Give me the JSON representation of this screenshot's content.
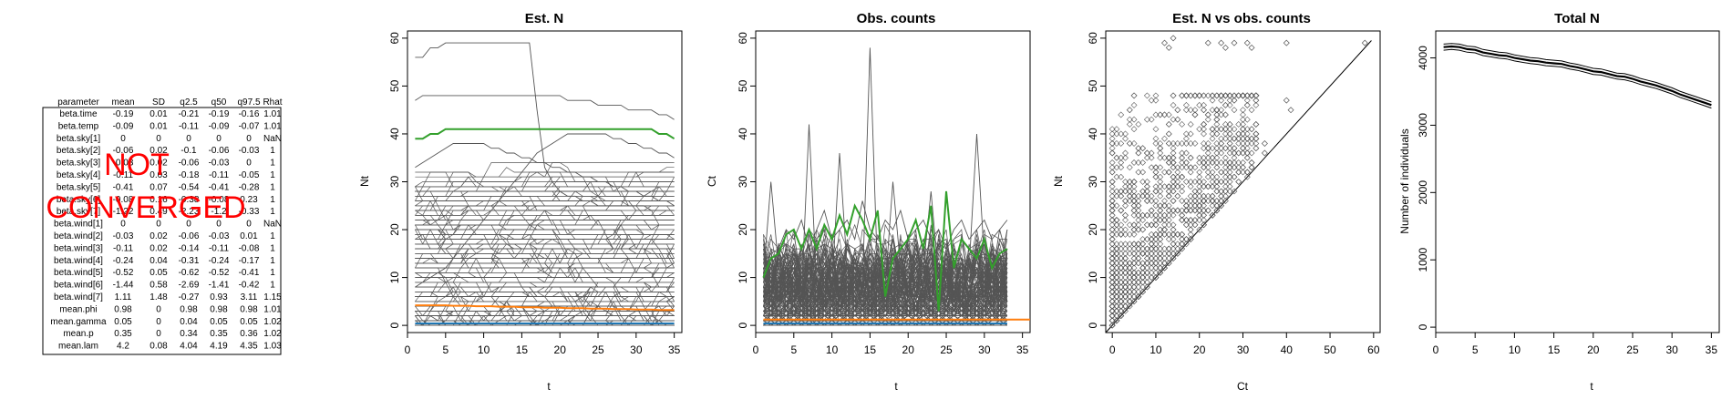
{
  "table": {
    "headers": [
      "parameter",
      "mean",
      "SD",
      "q2.5",
      "q50",
      "q97.5",
      "Rhat"
    ],
    "rows": [
      [
        "beta.time",
        "-0.19",
        "0.01",
        "-0.21",
        "-0.19",
        "-0.16",
        "1.01"
      ],
      [
        "beta.temp",
        "-0.09",
        "0.01",
        "-0.11",
        "-0.09",
        "-0.07",
        "1.01"
      ],
      [
        "beta.sky[1]",
        "0",
        "0",
        "0",
        "0",
        "0",
        "NaN"
      ],
      [
        "beta.sky[2]",
        "-0.06",
        "0.02",
        "-0.1",
        "-0.06",
        "-0.03",
        "1"
      ],
      [
        "beta.sky[3]",
        "-0.03",
        "0.02",
        "-0.06",
        "-0.03",
        "0",
        "1"
      ],
      [
        "beta.sky[4]",
        "-0.11",
        "0.03",
        "-0.18",
        "-0.11",
        "-0.05",
        "1"
      ],
      [
        "beta.sky[5]",
        "-0.41",
        "0.07",
        "-0.54",
        "-0.41",
        "-0.28",
        "1"
      ],
      [
        "beta.sky[6]",
        "-0.08",
        "0.16",
        "-0.38",
        "-0.08",
        "0.23",
        "1"
      ],
      [
        "beta.sky[7]",
        "-1.22",
        "0.49",
        "-2.23",
        "-1.2",
        "-0.33",
        "1"
      ],
      [
        "beta.wind[1]",
        "0",
        "0",
        "0",
        "0",
        "0",
        "NaN"
      ],
      [
        "beta.wind[2]",
        "-0.03",
        "0.02",
        "-0.06",
        "-0.03",
        "0.01",
        "1"
      ],
      [
        "beta.wind[3]",
        "-0.11",
        "0.02",
        "-0.14",
        "-0.11",
        "-0.08",
        "1"
      ],
      [
        "beta.wind[4]",
        "-0.24",
        "0.04",
        "-0.31",
        "-0.24",
        "-0.17",
        "1"
      ],
      [
        "beta.wind[5]",
        "-0.52",
        "0.05",
        "-0.62",
        "-0.52",
        "-0.41",
        "1"
      ],
      [
        "beta.wind[6]",
        "-1.44",
        "0.58",
        "-2.69",
        "-1.41",
        "-0.42",
        "1"
      ],
      [
        "beta.wind[7]",
        "1.11",
        "1.48",
        "-0.27",
        "0.93",
        "3.11",
        "1.15"
      ],
      [
        "mean.phi",
        "0.98",
        "0",
        "0.98",
        "0.98",
        "0.98",
        "1.01"
      ],
      [
        "mean.gamma",
        "0.05",
        "0",
        "0.04",
        "0.05",
        "0.05",
        "1.02"
      ],
      [
        "mean.p",
        "0.35",
        "0",
        "0.34",
        "0.35",
        "0.36",
        "1.02"
      ],
      [
        "mean.lam",
        "4.2",
        "0.08",
        "4.04",
        "4.19",
        "4.35",
        "1.03"
      ]
    ],
    "stamp_line1": "NOT",
    "stamp_line2": "CONVERGED",
    "stamp_color": "#ff0000"
  },
  "chart_data": [
    {
      "type": "line",
      "title": "Est. N",
      "xlabel": "t",
      "ylabel": "Nt",
      "xlim": [
        0,
        36
      ],
      "ylim": [
        -1.5,
        61.5
      ],
      "xticks": [
        0,
        5,
        10,
        15,
        20,
        25,
        30,
        35
      ],
      "yticks": [
        0,
        10,
        20,
        30,
        40,
        50,
        60
      ],
      "line_color": "#555555",
      "sample_sites": [
        {
          "values": [
            56,
            56,
            58,
            58,
            59,
            59,
            59,
            59,
            59,
            59,
            59,
            59,
            59,
            59,
            59,
            59,
            45,
            33,
            30,
            28,
            27,
            27,
            26,
            26,
            25,
            25,
            25,
            25,
            25,
            25,
            25,
            24,
            24,
            24,
            24
          ]
        },
        {
          "values": [
            47,
            48,
            48,
            48,
            48,
            48,
            48,
            48,
            48,
            48,
            48,
            48,
            48,
            48,
            48,
            48,
            48,
            48,
            48,
            48,
            47,
            47,
            47,
            47,
            46,
            46,
            46,
            46,
            45,
            45,
            45,
            45,
            44,
            44,
            43
          ]
        },
        {
          "values": [
            33,
            34,
            35,
            36,
            37,
            38,
            38,
            38,
            38,
            38,
            37,
            37,
            36,
            36,
            35,
            35,
            34,
            34,
            33,
            33,
            32,
            32,
            31,
            31,
            30,
            30,
            29,
            29,
            28,
            28,
            27,
            27,
            26,
            26,
            25
          ]
        },
        {
          "values": [
            8,
            9,
            10,
            11,
            12,
            14,
            16,
            18,
            20,
            22,
            24,
            26,
            28,
            30,
            32,
            34,
            36,
            37,
            38,
            39,
            40,
            40,
            40,
            40,
            40,
            40,
            39,
            39,
            38,
            38,
            37,
            37,
            36,
            36,
            35
          ]
        }
      ],
      "highlight_series": [
        {
          "name": "",
          "color": "#33a02c",
          "values": [
            39,
            39,
            40,
            40,
            41,
            41,
            41,
            41,
            41,
            41,
            41,
            41,
            41,
            41,
            41,
            41,
            41,
            41,
            41,
            41,
            41,
            41,
            41,
            41,
            41,
            41,
            41,
            41,
            41,
            41,
            41,
            41,
            40,
            40,
            39
          ]
        },
        {
          "name": "",
          "color": "#ff7f0e",
          "values": [
            4.2,
            4.2,
            4.2,
            4.2,
            4.2,
            4.1,
            4.1,
            4.1,
            4.0,
            4.0,
            4.0,
            3.9,
            3.9,
            3.9,
            3.8,
            3.8,
            3.8,
            3.7,
            3.7,
            3.7,
            3.6,
            3.6,
            3.6,
            3.5,
            3.5,
            3.5,
            3.4,
            3.4,
            3.4,
            3.3,
            3.3,
            3.3,
            3.2,
            3.2,
            3.2
          ]
        },
        {
          "name": "",
          "color": "#1f77b4",
          "values": [
            0.4,
            0.4,
            0.4,
            0.4,
            0.4,
            0.4,
            0.4,
            0.4,
            0.4,
            0.4,
            0.4,
            0.4,
            0.4,
            0.4,
            0.4,
            0.4,
            0.4,
            0.4,
            0.4,
            0.4,
            0.4,
            0.4,
            0.4,
            0.4,
            0.4,
            0.4,
            0.4,
            0.4,
            0.4,
            0.4,
            0.4,
            0.4,
            0.4,
            0.4,
            0.4
          ]
        }
      ]
    },
    {
      "type": "line",
      "title": "Obs. counts",
      "xlabel": "t",
      "ylabel": "Ct",
      "xlim": [
        0,
        36
      ],
      "ylim": [
        -1.5,
        61.5
      ],
      "xticks": [
        0,
        5,
        10,
        15,
        20,
        25,
        30,
        35
      ],
      "yticks": [
        0,
        10,
        20,
        30,
        40,
        50,
        60
      ],
      "line_color": "#555555",
      "sample_sites": [
        {
          "values": [
            5,
            4,
            8,
            10,
            12,
            6,
            42,
            8,
            10,
            12,
            15,
            10,
            14,
            8,
            58,
            10,
            12,
            8,
            6,
            10,
            12,
            14,
            10,
            12,
            8,
            6,
            10,
            12,
            40,
            14,
            10,
            12,
            20
          ]
        },
        {
          "values": [
            10,
            30,
            12,
            8,
            14,
            10,
            12,
            16,
            10,
            8,
            36,
            12,
            10,
            14,
            12,
            10,
            8,
            30,
            12,
            10,
            14,
            12,
            28,
            10,
            12,
            14,
            10,
            12,
            16,
            12,
            10,
            20,
            14
          ]
        },
        {
          "values": [
            14,
            12,
            16,
            20,
            18,
            22,
            16,
            20,
            24,
            18,
            20,
            22,
            18,
            26,
            20,
            18,
            22,
            20,
            24,
            18,
            20,
            22,
            18,
            20,
            16,
            20,
            22,
            18,
            20,
            22,
            18,
            20,
            22
          ]
        }
      ],
      "highlight_series": [
        {
          "name": "",
          "color": "#33a02c",
          "values": [
            10,
            14,
            15,
            19,
            20,
            16,
            20,
            16,
            21,
            18,
            23,
            19,
            25,
            22,
            18,
            24,
            6,
            14,
            16,
            18,
            22,
            16,
            25,
            3,
            28,
            12,
            18,
            16,
            14,
            18,
            12,
            15,
            16
          ]
        },
        {
          "name": "",
          "color": "#ff7f0e",
          "values": [
            1.2,
            1.2,
            1.2,
            1.2,
            1.2,
            1.2,
            1.2,
            1.2,
            1.2,
            1.2,
            1.2,
            1.2,
            1.2,
            1.2,
            1.2,
            1.2,
            1.2,
            1.2,
            1.2,
            1.2,
            1.2,
            1.2,
            1.2,
            1.2,
            1.2,
            1.2,
            1.2,
            1.2,
            1.2,
            1.2,
            1.2,
            1.2,
            1.2,
            1.2,
            1.2,
            1.2
          ]
        },
        {
          "name": "",
          "color": "#1f77b4",
          "values": [
            0.4,
            0.4,
            0.4,
            0.4,
            0.4,
            0.4,
            0.4,
            0.4,
            0.4,
            0.4,
            0.4,
            0.4,
            0.4,
            0.4,
            0.4,
            0.4,
            0.4,
            0.4,
            0.4,
            0.4,
            0.4,
            0.4,
            0.4,
            0.4,
            0.4,
            0.4,
            0.4,
            0.4,
            0.4,
            0.4,
            0.4,
            0.4,
            0.4
          ]
        }
      ]
    },
    {
      "type": "scatter",
      "title": "Est. N vs obs. counts",
      "xlabel": "Ct",
      "ylabel": "Nt",
      "xlim": [
        -1.5,
        61.5
      ],
      "ylim": [
        -1.5,
        61.5
      ],
      "xticks": [
        0,
        10,
        20,
        30,
        40,
        50,
        60
      ],
      "yticks": [
        0,
        10,
        20,
        30,
        40,
        50,
        60
      ],
      "reference_line": "y = x",
      "outlier_points": [
        [
          12,
          59
        ],
        [
          13,
          58
        ],
        [
          14,
          60
        ],
        [
          22,
          59
        ],
        [
          25,
          59
        ],
        [
          26,
          58
        ],
        [
          28,
          59
        ],
        [
          31,
          59
        ],
        [
          32,
          58
        ],
        [
          40,
          59
        ],
        [
          58,
          59
        ],
        [
          30,
          48
        ],
        [
          33,
          42
        ],
        [
          35,
          36
        ],
        [
          40,
          47
        ],
        [
          41,
          45
        ],
        [
          33,
          40
        ],
        [
          35,
          38
        ]
      ]
    },
    {
      "type": "line",
      "title": "Total N",
      "xlabel": "t",
      "ylabel": "Number of individuals",
      "xlim": [
        0,
        36
      ],
      "ylim": [
        -80,
        4400
      ],
      "xticks": [
        0,
        5,
        10,
        15,
        20,
        25,
        30,
        35
      ],
      "yticks": [
        0,
        1000,
        2000,
        3000,
        4000
      ],
      "series": [
        {
          "name": "",
          "values": [
            4160,
            4170,
            4160,
            4130,
            4120,
            4080,
            4060,
            4040,
            4030,
            4000,
            3980,
            3960,
            3950,
            3930,
            3920,
            3910,
            3880,
            3860,
            3830,
            3800,
            3790,
            3760,
            3730,
            3720,
            3690,
            3650,
            3620,
            3590,
            3550,
            3510,
            3460,
            3420,
            3380,
            3340,
            3300
          ]
        }
      ],
      "interval_halfwidth": 45
    }
  ]
}
